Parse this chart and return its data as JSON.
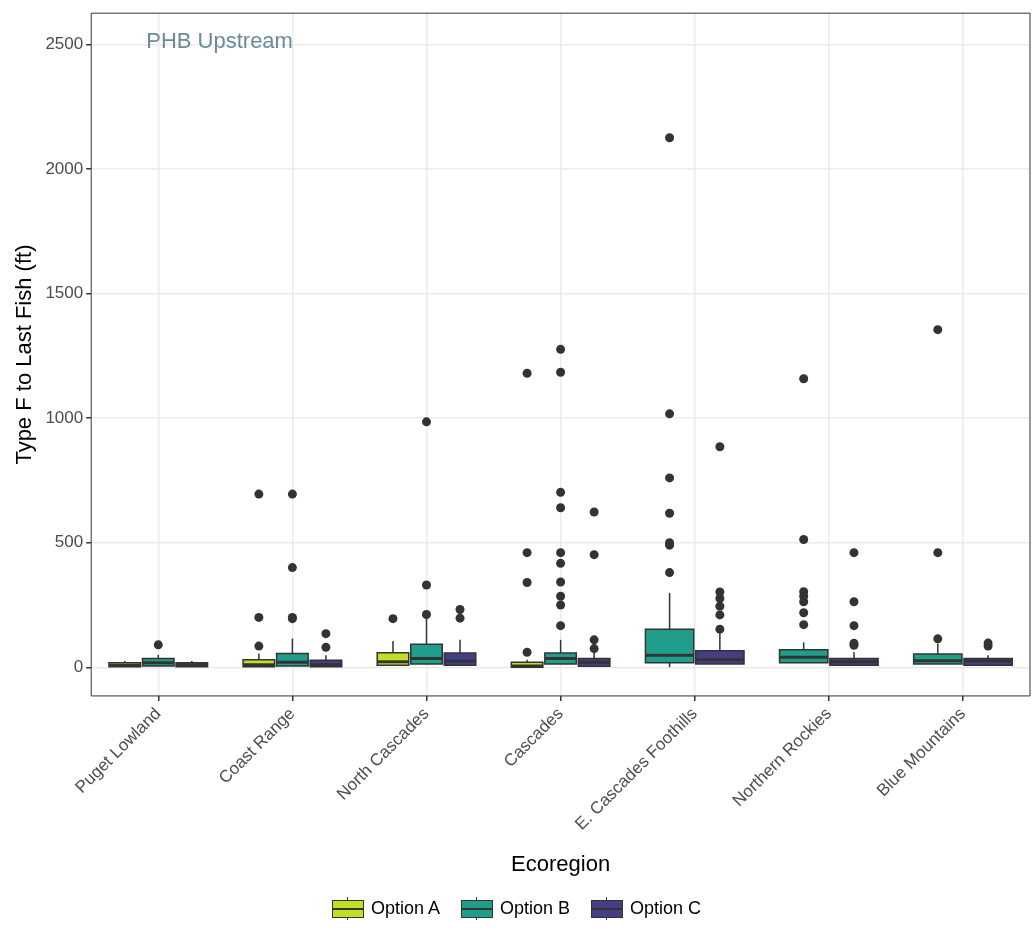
{
  "chart_data": {
    "type": "box",
    "title": "PHB Upstream",
    "xlabel": "Ecoregion",
    "ylabel": "Type F to Last Fish (ft)",
    "categories": [
      "Puget Lowland",
      "Coast Range",
      "North Cascades",
      "Cascades",
      "E. Cascades Foothills",
      "Northern Rockies",
      "Blue Mountains"
    ],
    "ylim": [
      -115,
      2625
    ],
    "yticks": [
      0,
      500,
      1000,
      1500,
      2000,
      2500
    ],
    "grid": true,
    "legend": "bottom",
    "series": [
      {
        "name": "Option A",
        "color": "#c2df23",
        "boxes": [
          {
            "low": 2,
            "q1": 2,
            "median": 8,
            "q3": 18,
            "high": 25
          },
          {
            "low": 2,
            "q1": 2,
            "median": 10,
            "q3": 30,
            "high": 55,
            "outliers": [
              85,
              200,
              695
            ]
          },
          {
            "low": 8,
            "q1": 8,
            "median": 22,
            "q3": 58,
            "high": 105,
            "outliers": [
              195
            ]
          },
          {
            "low": 0,
            "q1": 0,
            "median": 5,
            "q3": 20,
            "high": 30,
            "outliers": [
              60,
              340,
              460,
              1180
            ]
          },
          null,
          null,
          null
        ]
      },
      {
        "name": "Option B",
        "color": "#1f9e89",
        "boxes": [
          {
            "low": 5,
            "q1": 5,
            "median": 18,
            "q3": 35,
            "high": 50,
            "outliers": [
              90
            ]
          },
          {
            "low": 5,
            "q1": 5,
            "median": 20,
            "q3": 55,
            "high": 115,
            "outliers": [
              195,
              200,
              400,
              695
            ]
          },
          {
            "low": 13,
            "q1": 13,
            "median": 35,
            "q3": 92,
            "high": 200,
            "outliers": [
              212,
              330,
              985
            ]
          },
          {
            "low": 13,
            "q1": 13,
            "median": 35,
            "q3": 57,
            "high": 110,
            "outliers": [
              167,
              250,
              285,
              342,
              417,
              460,
              640,
              702,
              1184,
              1276
            ]
          },
          {
            "low": 0,
            "q1": 18,
            "median": 48,
            "q3": 153,
            "high": 298,
            "outliers": [
              380,
              490,
              500,
              618,
              760,
              1017,
              2125
            ]
          },
          {
            "low": 18,
            "q1": 18,
            "median": 40,
            "q3": 70,
            "high": 100,
            "outliers": [
              171,
              219,
              263,
              285,
              303,
              513,
              1158
            ]
          },
          {
            "low": 13,
            "q1": 13,
            "median": 26,
            "q3": 53,
            "high": 95,
            "outliers": [
              114,
              460,
              1355
            ]
          }
        ]
      },
      {
        "name": "Option C",
        "color": "#433e85",
        "boxes": [
          {
            "low": 2,
            "q1": 2,
            "median": 8,
            "q3": 18,
            "high": 25
          },
          {
            "low": 2,
            "q1": 2,
            "median": 10,
            "q3": 28,
            "high": 48,
            "outliers": [
              80,
              135
            ]
          },
          {
            "low": 8,
            "q1": 8,
            "median": 25,
            "q3": 57,
            "high": 110,
            "outliers": [
              197,
              232
            ]
          },
          {
            "low": 4,
            "q1": 4,
            "median": 20,
            "q3": 35,
            "high": 60,
            "outliers": [
              75,
              110,
              452,
              623
            ]
          },
          {
            "low": 13,
            "q1": 13,
            "median": 30,
            "q3": 66,
            "high": 140,
            "outliers": [
              153,
              210,
              245,
              276,
              302,
              885
            ]
          },
          {
            "low": 8,
            "q1": 8,
            "median": 22,
            "q3": 35,
            "high": 61,
            "outliers": [
              88,
              96,
              167,
              263,
              460
            ]
          },
          {
            "low": 8,
            "q1": 8,
            "median": 25,
            "q3": 35,
            "high": 48,
            "outliers": [
              85,
              97
            ]
          }
        ]
      }
    ]
  }
}
